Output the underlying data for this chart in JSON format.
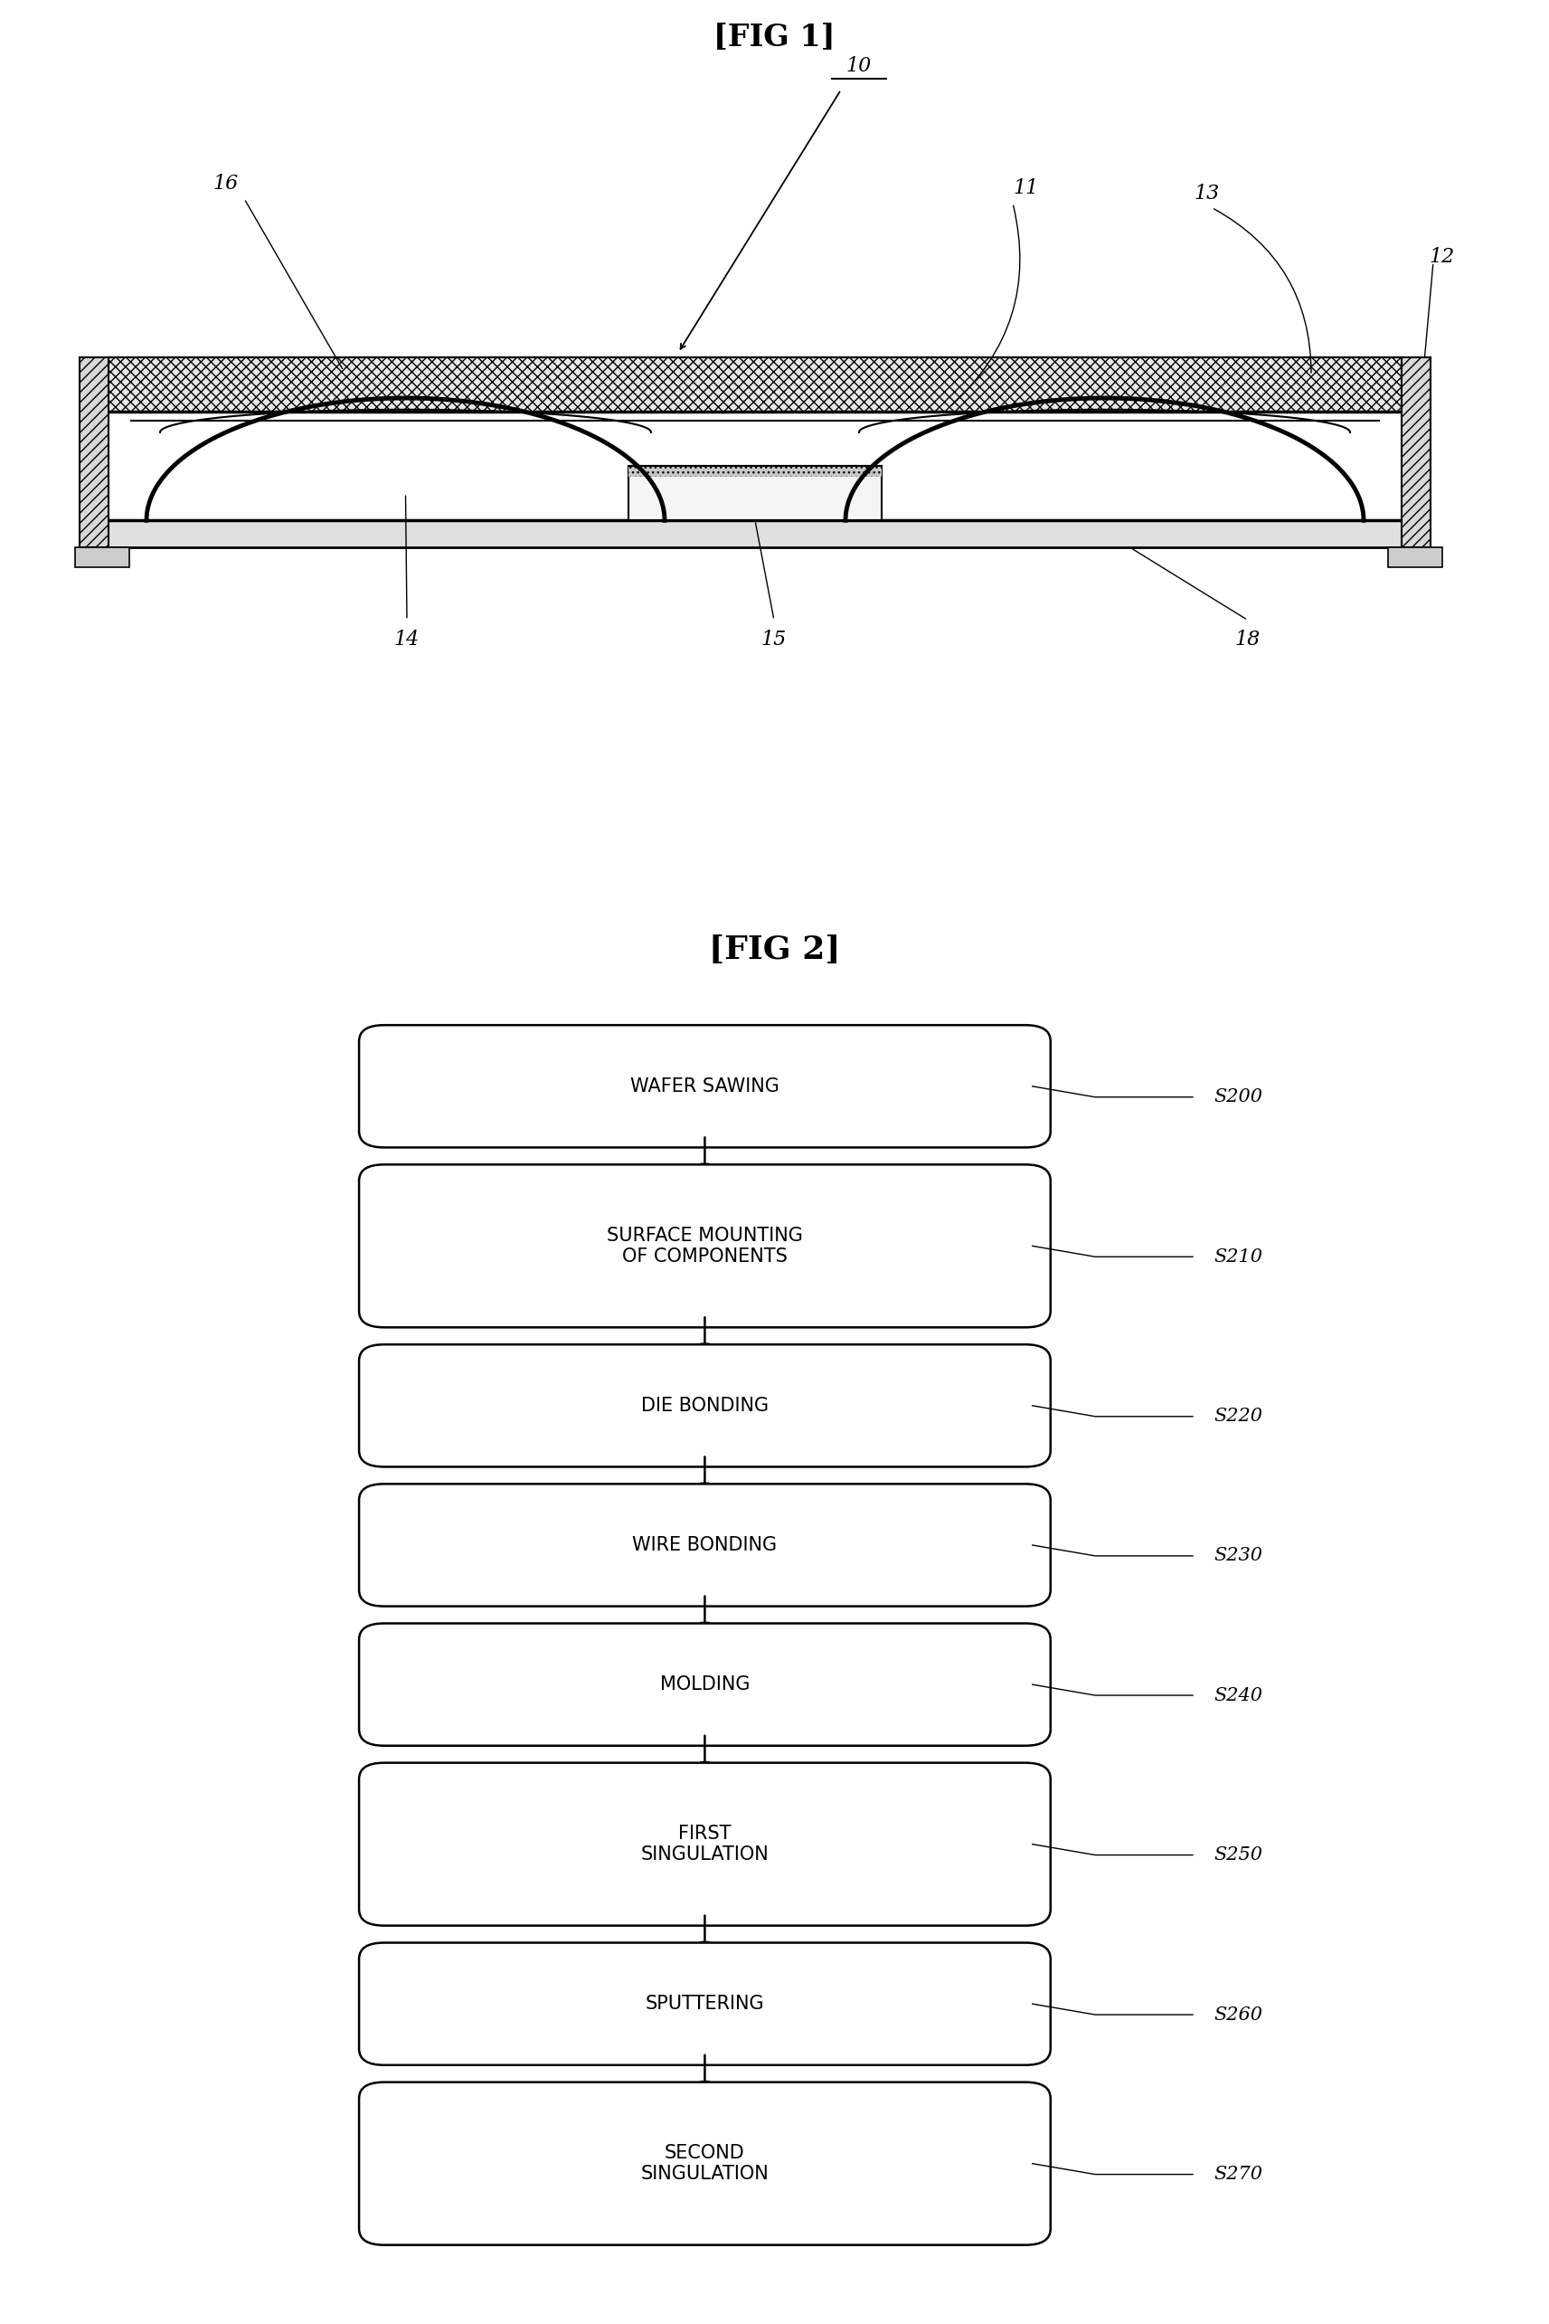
{
  "fig_title": "[FIG 1]",
  "fig2_title": "[FIG 2]",
  "background_color": "#ffffff",
  "flow_steps": [
    {
      "label": "WAFER SAWING",
      "code": "S200",
      "lines": 1
    },
    {
      "label": "SURFACE MOUNTING\nOF COMPONENTS",
      "code": "S210",
      "lines": 2
    },
    {
      "label": "DIE BONDING",
      "code": "S220",
      "lines": 1
    },
    {
      "label": "WIRE BONDING",
      "code": "S230",
      "lines": 1
    },
    {
      "label": "MOLDING",
      "code": "S240",
      "lines": 1
    },
    {
      "label": "FIRST\nSINGULATION",
      "code": "S250",
      "lines": 2
    },
    {
      "label": "SPUTTERING",
      "code": "S260",
      "lines": 1
    },
    {
      "label": "SECOND\nSINGULATION",
      "code": "S270",
      "lines": 2
    }
  ],
  "label_color": "#000000",
  "box_edge_color": "#000000",
  "box_fill_color": "#ffffff",
  "arrow_color": "#000000",
  "fig1_title_fontsize": 24,
  "fig2_title_fontsize": 26,
  "annot_fontsize": 16,
  "label_fontsize": 15,
  "code_fontsize": 15
}
